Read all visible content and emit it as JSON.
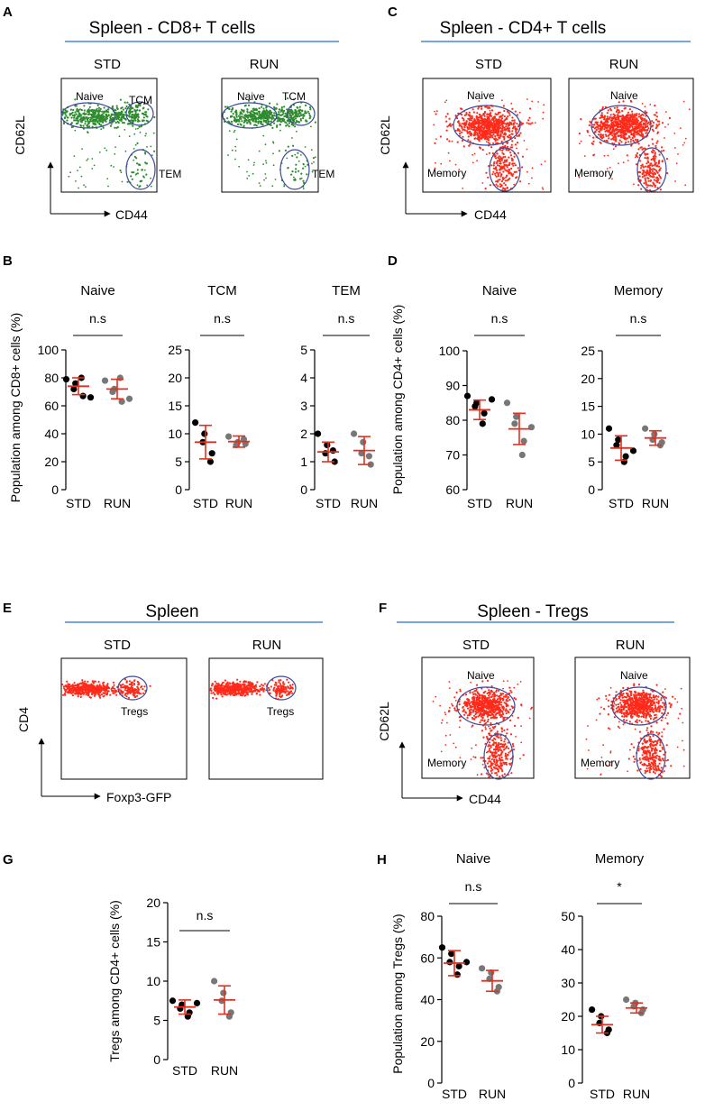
{
  "colors": {
    "header_line": "#4a86d8",
    "gate": "#3a4a9a",
    "green": "#2e8b2e",
    "red": "#ff2a1a",
    "std_point": "#000000",
    "run_point": "#777777",
    "mean_bar": "#e03020"
  },
  "panels": {
    "A": {
      "letter": "A",
      "title": "Spleen - CD8+ T cells",
      "cond1": "STD",
      "cond2": "RUN",
      "x_axis": "CD44",
      "y_axis": "CD62L",
      "gates": [
        "Naive",
        "TCM",
        "TEM"
      ]
    },
    "C": {
      "letter": "C",
      "title": "Spleen - CD4+ T cells",
      "cond1": "STD",
      "cond2": "RUN",
      "x_axis": "CD44",
      "y_axis": "CD62L",
      "gates": [
        "Naive",
        "Memory"
      ]
    },
    "E": {
      "letter": "E",
      "title": "Spleen",
      "cond1": "STD",
      "cond2": "RUN",
      "x_axis": "Foxp3-GFP",
      "y_axis": "CD4",
      "gates": [
        "Tregs"
      ]
    },
    "F": {
      "letter": "F",
      "title": "Spleen - Tregs",
      "cond1": "STD",
      "cond2": "RUN",
      "x_axis": "CD44",
      "y_axis": "CD62L",
      "gates": [
        "Naive",
        "Memory"
      ]
    },
    "B": {
      "letter": "B",
      "ylabel": "Population among CD8+ cells (%)"
    },
    "D": {
      "letter": "D",
      "ylabel": "Population among CD4+ cells (%)"
    },
    "G": {
      "letter": "G",
      "ylabel": "Tregs among CD4+ cells (%)"
    },
    "H": {
      "letter": "H",
      "ylabel": "Population among Tregs (%)"
    }
  },
  "chart_data": [
    {
      "id": "B-naive",
      "type": "scatter",
      "title": "Naive",
      "significance": "n.s",
      "categories": [
        "STD",
        "RUN"
      ],
      "ylim": [
        0,
        100
      ],
      "ticks": [
        0,
        20,
        40,
        60,
        80,
        100
      ],
      "series": [
        {
          "name": "STD",
          "values": [
            79,
            76,
            72,
            67,
            80,
            66
          ],
          "mean": 74,
          "error": 6
        },
        {
          "name": "RUN",
          "values": [
            78,
            72,
            70,
            63,
            80,
            65
          ],
          "mean": 72,
          "error": 7
        }
      ]
    },
    {
      "id": "B-tcm",
      "type": "scatter",
      "title": "TCM",
      "significance": "n.s",
      "categories": [
        "STD",
        "RUN"
      ],
      "ylim": [
        0,
        25
      ],
      "ticks": [
        0,
        5,
        10,
        15,
        20,
        25
      ],
      "series": [
        {
          "name": "STD",
          "values": [
            12,
            10,
            8.5,
            6.5,
            5
          ],
          "mean": 8.5,
          "error": 3
        },
        {
          "name": "RUN",
          "values": [
            9.5,
            8.5,
            8,
            8.2,
            9
          ],
          "mean": 8.6,
          "error": 1
        }
      ]
    },
    {
      "id": "B-tem",
      "type": "scatter",
      "title": "TEM",
      "significance": "n.s",
      "categories": [
        "STD",
        "RUN"
      ],
      "ylim": [
        0,
        5
      ],
      "ticks": [
        0,
        1,
        2,
        3,
        4,
        5
      ],
      "series": [
        {
          "name": "STD",
          "values": [
            2,
            1.6,
            1.3,
            1,
            1.4
          ],
          "mean": 1.35,
          "error": 0.35
        },
        {
          "name": "RUN",
          "values": [
            2,
            1.7,
            1.3,
            0.9,
            1.2
          ],
          "mean": 1.4,
          "error": 0.5
        }
      ]
    },
    {
      "id": "D-naive",
      "type": "scatter",
      "title": "Naive",
      "significance": "n.s",
      "categories": [
        "STD",
        "RUN"
      ],
      "ylim": [
        60,
        100
      ],
      "ticks": [
        60,
        70,
        80,
        90,
        100
      ],
      "series": [
        {
          "name": "STD",
          "values": [
            87,
            85,
            84,
            82,
            79,
            86
          ],
          "mean": 83,
          "error": 2.8
        },
        {
          "name": "RUN",
          "values": [
            85,
            81,
            79,
            74,
            70,
            78
          ],
          "mean": 77.5,
          "error": 4.5
        }
      ]
    },
    {
      "id": "D-memory",
      "type": "scatter",
      "title": "Memory",
      "significance": "n.s",
      "categories": [
        "STD",
        "RUN"
      ],
      "ylim": [
        0,
        25
      ],
      "ticks": [
        0,
        5,
        10,
        15,
        20,
        25
      ],
      "series": [
        {
          "name": "STD",
          "values": [
            11,
            9,
            8,
            6,
            5,
            7
          ],
          "mean": 7.5,
          "error": 2.2
        },
        {
          "name": "RUN",
          "values": [
            11,
            10,
            9,
            8.5,
            8
          ],
          "mean": 9.3,
          "error": 1.3
        }
      ]
    },
    {
      "id": "G",
      "type": "scatter",
      "title": "",
      "significance": "n.s",
      "categories": [
        "STD",
        "RUN"
      ],
      "ylim": [
        0,
        20
      ],
      "ticks": [
        0,
        5,
        10,
        15,
        20
      ],
      "series": [
        {
          "name": "STD",
          "values": [
            7.5,
            7,
            6.5,
            6,
            5.5,
            7.2
          ],
          "mean": 6.7,
          "error": 0.9
        },
        {
          "name": "RUN",
          "values": [
            10,
            8.5,
            7.5,
            6,
            5.5
          ],
          "mean": 7.6,
          "error": 1.8
        }
      ]
    },
    {
      "id": "H-naive",
      "type": "scatter",
      "title": "Naive",
      "significance": "n.s",
      "categories": [
        "STD",
        "RUN"
      ],
      "ylim": [
        0,
        80
      ],
      "ticks": [
        0,
        20,
        40,
        60,
        80
      ],
      "series": [
        {
          "name": "STD",
          "values": [
            65,
            62,
            58,
            56,
            52,
            58
          ],
          "mean": 57.5,
          "error": 6
        },
        {
          "name": "RUN",
          "values": [
            55,
            53,
            50,
            46,
            44
          ],
          "mean": 49,
          "error": 5
        }
      ]
    },
    {
      "id": "H-memory",
      "type": "scatter",
      "title": "Memory",
      "significance": "*",
      "categories": [
        "STD",
        "RUN"
      ],
      "ylim": [
        0,
        50
      ],
      "ticks": [
        0,
        10,
        20,
        30,
        40,
        50
      ],
      "series": [
        {
          "name": "STD",
          "values": [
            22,
            20,
            18,
            16,
            15
          ],
          "mean": 17.5,
          "error": 2.5
        },
        {
          "name": "RUN",
          "values": [
            25,
            24,
            23,
            22,
            21
          ],
          "mean": 22.5,
          "error": 1.5
        }
      ]
    }
  ]
}
